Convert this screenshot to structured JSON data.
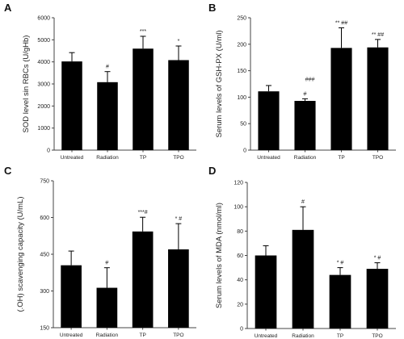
{
  "chart_data": [
    {
      "type": "bar",
      "panel": "A",
      "ylabel": "SOD level sin RBCs (U/gHb)",
      "ylim": [
        0,
        6000
      ],
      "yticks": [
        0,
        1000,
        2000,
        3000,
        4000,
        5000,
        6000
      ],
      "categories": [
        "Untreated",
        "Radiation",
        "TP",
        "TPO"
      ],
      "values": [
        4020,
        3080,
        4600,
        4080
      ],
      "errors": [
        400,
        480,
        560,
        640
      ],
      "annotations": [
        "",
        "#",
        "***",
        "*"
      ]
    },
    {
      "type": "bar",
      "panel": "B",
      "ylabel": "Serum levels of GSH-PX (U/ml)",
      "ylim": [
        0,
        250
      ],
      "yticks": [
        0,
        50,
        100,
        150,
        200,
        250
      ],
      "categories": [
        "Untreated",
        "Radiation",
        "TP",
        "TPO"
      ],
      "values": [
        111,
        93,
        193,
        194
      ],
      "errors": [
        11,
        4,
        38,
        15
      ],
      "annotations": [
        "",
        "#",
        "** ##",
        "** ##"
      ],
      "extra_annotation": {
        "text": "###",
        "x_between": [
          1,
          1
        ],
        "y": 130
      }
    },
    {
      "type": "bar",
      "panel": "C",
      "ylabel": "(.OH) scavenging capacity (U/mL)",
      "ylim": [
        150,
        750
      ],
      "yticks": [
        150,
        300,
        450,
        600,
        750
      ],
      "categories": [
        "Untreated",
        "Radiation",
        "TP",
        "TPO"
      ],
      "values": [
        405,
        313,
        543,
        470
      ],
      "errors": [
        58,
        82,
        58,
        105
      ],
      "annotations": [
        "",
        "#",
        "***#",
        "* #"
      ]
    },
    {
      "type": "bar",
      "panel": "D",
      "ylabel": "Serum levels of MDA (nmol/ml)",
      "ylim": [
        0,
        120
      ],
      "yticks": [
        0,
        20,
        40,
        60,
        80,
        100,
        120
      ],
      "categories": [
        "Untreated",
        "Radiation",
        "TP",
        "TPO"
      ],
      "values": [
        60,
        81,
        44,
        49
      ],
      "errors": [
        8,
        19,
        6,
        5
      ],
      "annotations": [
        "",
        "#",
        "* #",
        "* #"
      ]
    }
  ]
}
